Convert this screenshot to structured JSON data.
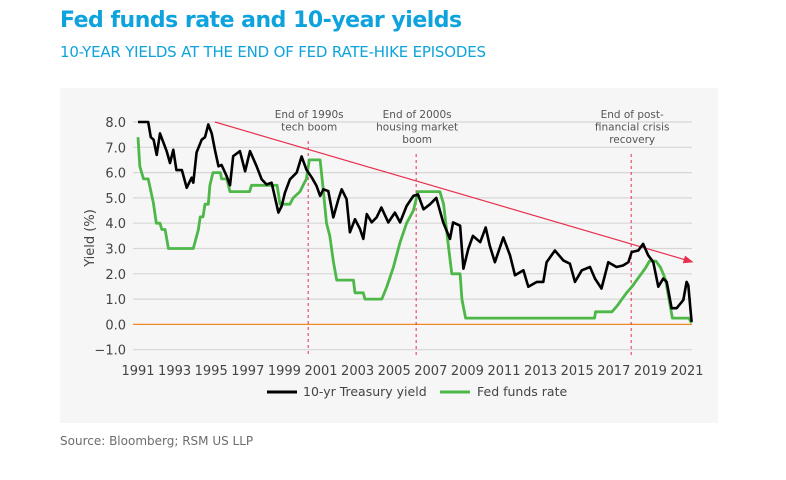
{
  "title": "Fed funds rate and 10-year yields",
  "subtitle": "10-YEAR YIELDS AT THE END OF FED RATE-HIKE EPISODES",
  "source": "Source: Bloomberg; RSM US LLP",
  "colors": {
    "title": "#0ea3dc",
    "treasury": "#000000",
    "fed_funds": "#4db748",
    "trend": "#e8304e",
    "zero_line": "#f08a24",
    "event_lines": "#e8304e"
  },
  "chart_data": {
    "type": "line",
    "title": "Fed funds rate and 10-year yields",
    "xlabel": "",
    "ylabel": "Yield (%)",
    "xlim": [
      1991,
      2021.3
    ],
    "ylim": [
      -1,
      8
    ],
    "grid": true,
    "legend_position": "bottom",
    "x_ticks": [
      "1991",
      "1993",
      "1995",
      "1997",
      "1999",
      "2001",
      "2003",
      "2005",
      "2007",
      "2009",
      "2011",
      "2013",
      "2015",
      "2017",
      "2019",
      "2021"
    ],
    "y_ticks": [
      "8.0",
      "7.0",
      "6.0",
      "5.0",
      "4.0",
      "3.0",
      "2.0",
      "1.0",
      "0.0",
      "−1.0"
    ],
    "series": [
      {
        "name": "10-yr Treasury yield",
        "points": [
          [
            1991.0,
            8.0
          ],
          [
            1991.56,
            8.0
          ],
          [
            1991.7,
            7.4
          ],
          [
            1991.85,
            7.3
          ],
          [
            1992.02,
            6.7
          ],
          [
            1992.2,
            7.55
          ],
          [
            1992.57,
            6.84
          ],
          [
            1992.75,
            6.38
          ],
          [
            1992.93,
            6.9
          ],
          [
            1993.1,
            6.1
          ],
          [
            1993.4,
            6.1
          ],
          [
            1993.66,
            5.4
          ],
          [
            1993.93,
            5.8
          ],
          [
            1994.02,
            5.6
          ],
          [
            1994.2,
            6.8
          ],
          [
            1994.48,
            7.3
          ],
          [
            1994.66,
            7.4
          ],
          [
            1994.84,
            7.9
          ],
          [
            1995.03,
            7.55
          ],
          [
            1995.2,
            6.9
          ],
          [
            1995.4,
            6.25
          ],
          [
            1995.57,
            6.3
          ],
          [
            1995.85,
            5.85
          ],
          [
            1996.03,
            5.5
          ],
          [
            1996.2,
            6.65
          ],
          [
            1996.57,
            6.85
          ],
          [
            1996.85,
            6.05
          ],
          [
            1997.12,
            6.85
          ],
          [
            1997.48,
            6.25
          ],
          [
            1997.76,
            5.73
          ],
          [
            1998.03,
            5.53
          ],
          [
            1998.3,
            5.6
          ],
          [
            1998.67,
            4.42
          ],
          [
            1998.85,
            4.68
          ],
          [
            1999.03,
            5.2
          ],
          [
            1999.3,
            5.73
          ],
          [
            1999.67,
            6.0
          ],
          [
            1999.94,
            6.64
          ],
          [
            2000.2,
            6.12
          ],
          [
            2000.5,
            5.8
          ],
          [
            2000.76,
            5.47
          ],
          [
            2000.95,
            5.08
          ],
          [
            2001.13,
            5.34
          ],
          [
            2001.4,
            5.27
          ],
          [
            2001.67,
            4.23
          ],
          [
            2001.95,
            4.95
          ],
          [
            2002.13,
            5.34
          ],
          [
            2002.4,
            4.95
          ],
          [
            2002.58,
            3.64
          ],
          [
            2002.86,
            4.16
          ],
          [
            2003.13,
            3.77
          ],
          [
            2003.31,
            3.38
          ],
          [
            2003.5,
            4.36
          ],
          [
            2003.77,
            4.03
          ],
          [
            2004.04,
            4.23
          ],
          [
            2004.3,
            4.62
          ],
          [
            2004.68,
            4.03
          ],
          [
            2005.04,
            4.42
          ],
          [
            2005.32,
            4.03
          ],
          [
            2005.68,
            4.68
          ],
          [
            2006.05,
            5.08
          ],
          [
            2006.3,
            5.14
          ],
          [
            2006.6,
            4.55
          ],
          [
            2006.96,
            4.75
          ],
          [
            2007.3,
            5.0
          ],
          [
            2007.68,
            4.03
          ],
          [
            2008.05,
            3.38
          ],
          [
            2008.22,
            4.03
          ],
          [
            2008.6,
            3.9
          ],
          [
            2008.78,
            2.2
          ],
          [
            2009.05,
            2.99
          ],
          [
            2009.3,
            3.5
          ],
          [
            2009.7,
            3.25
          ],
          [
            2010.0,
            3.83
          ],
          [
            2010.22,
            3.12
          ],
          [
            2010.5,
            2.46
          ],
          [
            2010.96,
            3.44
          ],
          [
            2011.33,
            2.73
          ],
          [
            2011.6,
            1.94
          ],
          [
            2012.06,
            2.14
          ],
          [
            2012.33,
            1.49
          ],
          [
            2012.8,
            1.68
          ],
          [
            2013.15,
            1.68
          ],
          [
            2013.33,
            2.46
          ],
          [
            2013.78,
            2.92
          ],
          [
            2014.24,
            2.53
          ],
          [
            2014.6,
            2.4
          ],
          [
            2014.88,
            1.68
          ],
          [
            2015.25,
            2.14
          ],
          [
            2015.7,
            2.27
          ],
          [
            2015.97,
            1.81
          ],
          [
            2016.33,
            1.42
          ],
          [
            2016.7,
            2.46
          ],
          [
            2017.15,
            2.27
          ],
          [
            2017.5,
            2.33
          ],
          [
            2017.8,
            2.46
          ],
          [
            2017.98,
            2.86
          ],
          [
            2018.34,
            2.92
          ],
          [
            2018.6,
            3.18
          ],
          [
            2018.88,
            2.73
          ],
          [
            2019.16,
            2.46
          ],
          [
            2019.43,
            1.49
          ],
          [
            2019.7,
            1.81
          ],
          [
            2019.89,
            1.68
          ],
          [
            2020.16,
            0.64
          ],
          [
            2020.43,
            0.64
          ],
          [
            2020.8,
            0.96
          ],
          [
            2020.98,
            1.68
          ],
          [
            2021.07,
            1.55
          ],
          [
            2021.25,
            0.1
          ]
        ]
      },
      {
        "name": "Fed funds rate",
        "points": [
          [
            1991.0,
            7.4
          ],
          [
            1991.1,
            6.25
          ],
          [
            1991.3,
            5.75
          ],
          [
            1991.56,
            5.75
          ],
          [
            1991.84,
            4.8
          ],
          [
            1992.0,
            4.0
          ],
          [
            1992.2,
            4.0
          ],
          [
            1992.3,
            3.75
          ],
          [
            1992.48,
            3.75
          ],
          [
            1992.66,
            3.0
          ],
          [
            1994.02,
            3.0
          ],
          [
            1994.3,
            3.75
          ],
          [
            1994.4,
            4.25
          ],
          [
            1994.55,
            4.25
          ],
          [
            1994.66,
            4.75
          ],
          [
            1994.84,
            4.75
          ],
          [
            1994.93,
            5.5
          ],
          [
            1995.1,
            6.0
          ],
          [
            1995.5,
            6.0
          ],
          [
            1995.57,
            5.75
          ],
          [
            1995.85,
            5.75
          ],
          [
            1996.03,
            5.25
          ],
          [
            1997.1,
            5.25
          ],
          [
            1997.2,
            5.5
          ],
          [
            1998.6,
            5.5
          ],
          [
            1998.76,
            4.75
          ],
          [
            1999.3,
            4.75
          ],
          [
            1999.48,
            5.0
          ],
          [
            1999.85,
            5.25
          ],
          [
            2000.02,
            5.5
          ],
          [
            2000.2,
            5.75
          ],
          [
            2000.36,
            6.5
          ],
          [
            2000.95,
            6.5
          ],
          [
            2001.1,
            5.5
          ],
          [
            2001.3,
            4.0
          ],
          [
            2001.48,
            3.5
          ],
          [
            2001.67,
            2.5
          ],
          [
            2001.86,
            1.75
          ],
          [
            2002.77,
            1.75
          ],
          [
            2002.86,
            1.25
          ],
          [
            2003.31,
            1.25
          ],
          [
            2003.4,
            1.0
          ],
          [
            2004.32,
            1.0
          ],
          [
            2004.6,
            1.5
          ],
          [
            2004.95,
            2.25
          ],
          [
            2005.32,
            3.25
          ],
          [
            2005.68,
            4.0
          ],
          [
            2006.05,
            4.5
          ],
          [
            2006.3,
            5.25
          ],
          [
            2007.5,
            5.25
          ],
          [
            2007.7,
            4.75
          ],
          [
            2007.98,
            3.0
          ],
          [
            2008.15,
            2.0
          ],
          [
            2008.6,
            2.0
          ],
          [
            2008.7,
            1.0
          ],
          [
            2008.9,
            0.25
          ],
          [
            2015.95,
            0.25
          ],
          [
            2016.0,
            0.5
          ],
          [
            2016.9,
            0.5
          ],
          [
            2017.2,
            0.75
          ],
          [
            2017.45,
            1.0
          ],
          [
            2017.7,
            1.25
          ],
          [
            2018.0,
            1.5
          ],
          [
            2018.25,
            1.75
          ],
          [
            2018.5,
            2.0
          ],
          [
            2018.75,
            2.25
          ],
          [
            2018.95,
            2.5
          ],
          [
            2019.3,
            2.5
          ],
          [
            2019.55,
            2.25
          ],
          [
            2019.7,
            2.0
          ],
          [
            2019.83,
            1.75
          ],
          [
            2020.2,
            0.25
          ],
          [
            2021.1,
            0.25
          ],
          [
            2021.25,
            0.05
          ]
        ]
      }
    ],
    "trend_arrow": {
      "from": [
        1995.2,
        8.0
      ],
      "to": [
        2021.3,
        2.47
      ]
    },
    "events": [
      {
        "x": 2000.3,
        "label_lines": [
          "End of 1990s",
          "tech boom"
        ]
      },
      {
        "x": 2006.2,
        "label_lines": [
          "End of 2000s",
          "housing market",
          "boom"
        ]
      },
      {
        "x": 2017.95,
        "label_lines": [
          "End of post-",
          "financial crisis",
          "recovery"
        ]
      }
    ],
    "legend": [
      "10-yr Treasury yield",
      "Fed funds rate"
    ]
  }
}
